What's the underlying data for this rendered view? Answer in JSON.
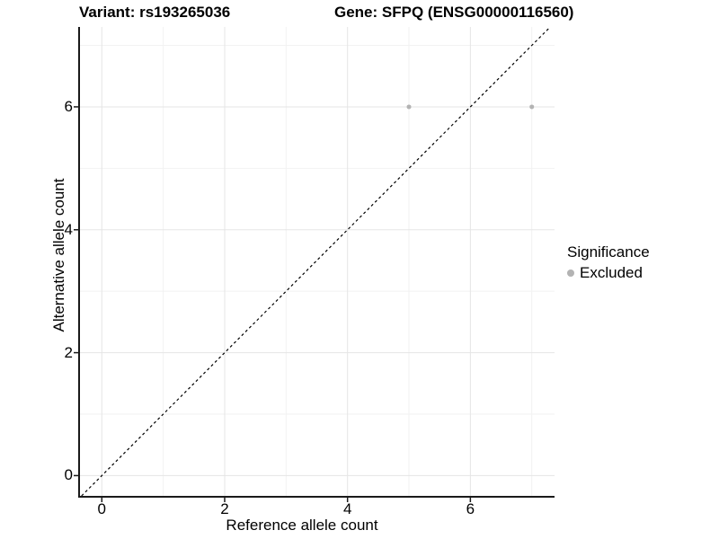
{
  "titles": {
    "variant": "Variant: rs193265036",
    "gene": "Gene: SFPQ (ENSG00000116560)"
  },
  "chart_data": {
    "type": "scatter",
    "title_left": "Variant: rs193265036",
    "title_right": "Gene: SFPQ (ENSG00000116560)",
    "xlabel": "Reference allele count",
    "ylabel": "Alternative allele count",
    "xlim": [
      -0.37,
      7.37
    ],
    "ylim": [
      -0.33,
      7.3
    ],
    "x_ticks": [
      0,
      2,
      4,
      6
    ],
    "y_ticks": [
      0,
      2,
      4,
      6
    ],
    "x_minor_breaks": [
      1,
      3,
      5,
      7
    ],
    "y_minor_breaks": [
      1,
      3,
      5,
      7
    ],
    "grid": true,
    "series": [
      {
        "name": "Excluded",
        "color": "#b3b3b3",
        "point_radius": 2.5,
        "points": [
          {
            "x": 5,
            "y": 6
          },
          {
            "x": 7,
            "y": 6
          }
        ]
      }
    ],
    "reference_line": {
      "equation": "y = x",
      "style": "dashed",
      "color": "#000000"
    },
    "legend": {
      "title": "Significance",
      "position": "right",
      "items": [
        {
          "label": "Excluded",
          "color": "#b3b3b3"
        }
      ]
    },
    "colors": {
      "background": "#ffffff",
      "grid_major": "#e5e5e5",
      "grid_minor": "#f2f2f2",
      "axis_line": "#1a1a1a",
      "text": "#000000"
    }
  }
}
